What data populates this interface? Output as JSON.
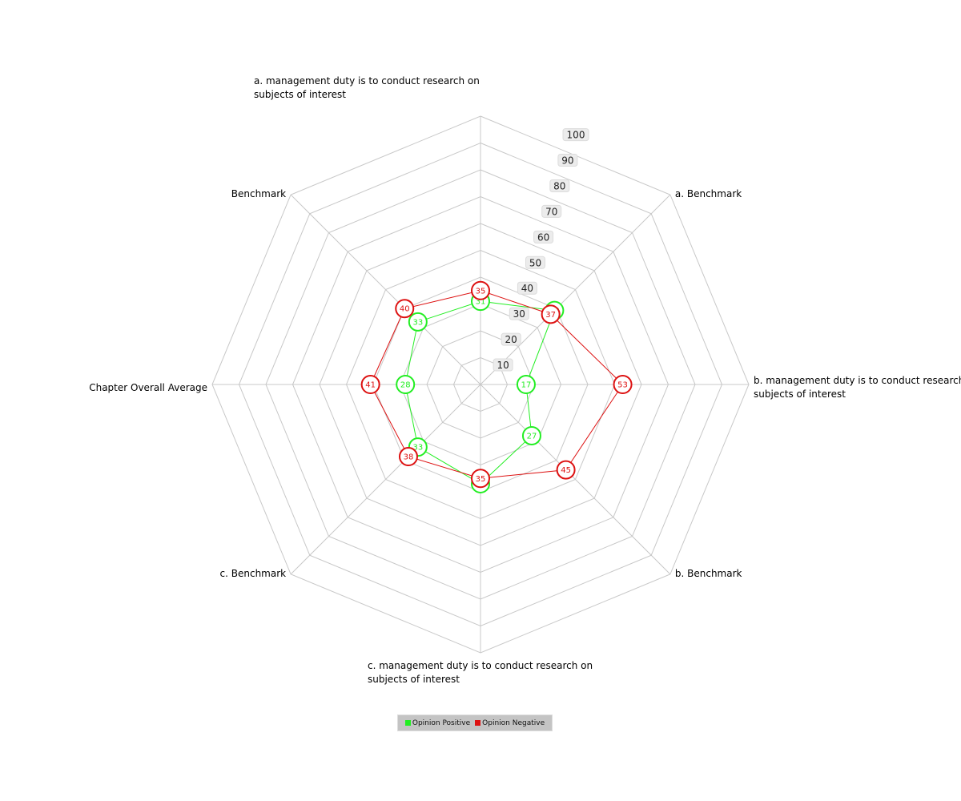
{
  "chart_data": {
    "type": "radar",
    "title": "",
    "axes": [
      {
        "label_lines": [
          "a. management duty is to conduct research on",
          "subjects of interest"
        ]
      },
      {
        "label_lines": [
          "a. Benchmark"
        ]
      },
      {
        "label_lines": [
          "b. management duty is to conduct research on",
          "subjects of interest"
        ]
      },
      {
        "label_lines": [
          "b. Benchmark"
        ]
      },
      {
        "label_lines": [
          "c. management duty is to conduct research on",
          "subjects of interest"
        ]
      },
      {
        "label_lines": [
          "c. Benchmark"
        ]
      },
      {
        "label_lines": [
          "Chapter Overall Average"
        ]
      },
      {
        "label_lines": [
          "Benchmark"
        ]
      }
    ],
    "rmin": 0,
    "rmax": 100,
    "ticks": [
      10,
      20,
      30,
      40,
      50,
      60,
      70,
      80,
      90,
      100
    ],
    "grid": true,
    "series": [
      {
        "name": "Opinion Positive",
        "color": "#22ee22",
        "values": [
          31,
          39,
          17,
          27,
          37,
          33,
          28,
          33
        ]
      },
      {
        "name": "Opinion Negative",
        "color": "#dd1111",
        "values": [
          35,
          37,
          53,
          45,
          35,
          38,
          41,
          40
        ]
      }
    ],
    "legend_position": "bottom"
  }
}
